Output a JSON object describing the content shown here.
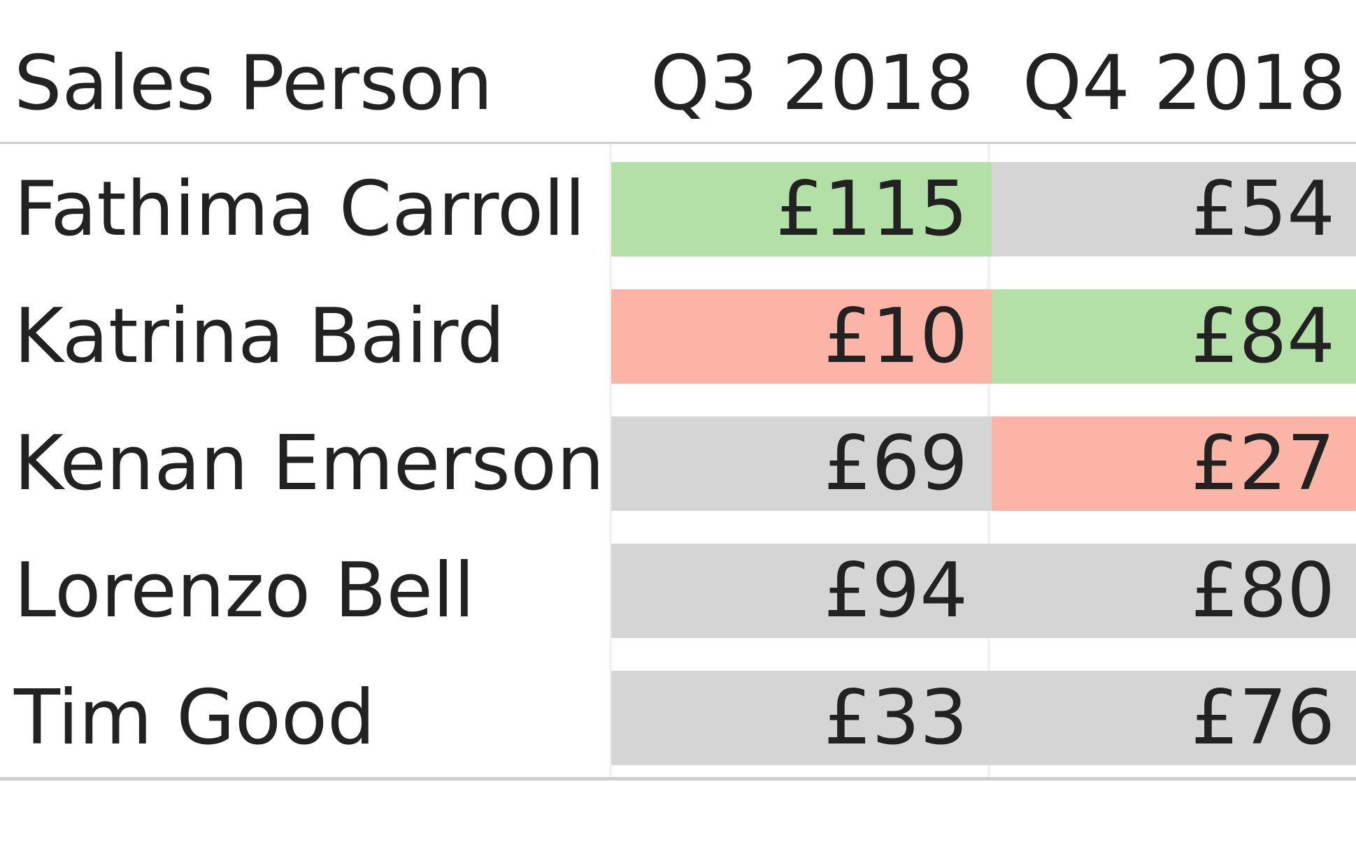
{
  "table": {
    "headers": {
      "name": "Sales Person",
      "q3": "Q3 2018",
      "q4": "Q4 2018"
    }
  },
  "colors": {
    "good": "#b3e0a6",
    "bad": "#fbb4a5",
    "neutral": "#d5d5d5"
  },
  "chart_data": {
    "type": "table",
    "columns": [
      "Sales Person",
      "Q3 2018",
      "Q4 2018"
    ],
    "rows": [
      {
        "name": "Fathima Carroll",
        "q3": "£115",
        "q4": "£54",
        "q3_status": "good",
        "q4_status": "neutral"
      },
      {
        "name": "Katrina Baird",
        "q3": "£10",
        "q4": "£84",
        "q3_status": "bad",
        "q4_status": "good"
      },
      {
        "name": "Kenan Emerson",
        "q3": "£69",
        "q4": "£27",
        "q3_status": "neutral",
        "q4_status": "bad"
      },
      {
        "name": "Lorenzo Bell",
        "q3": "£94",
        "q4": "£80",
        "q3_status": "neutral",
        "q4_status": "neutral"
      },
      {
        "name": "Tim Good",
        "q3": "£33",
        "q4": "£76",
        "q3_status": "neutral",
        "q4_status": "neutral"
      }
    ]
  }
}
